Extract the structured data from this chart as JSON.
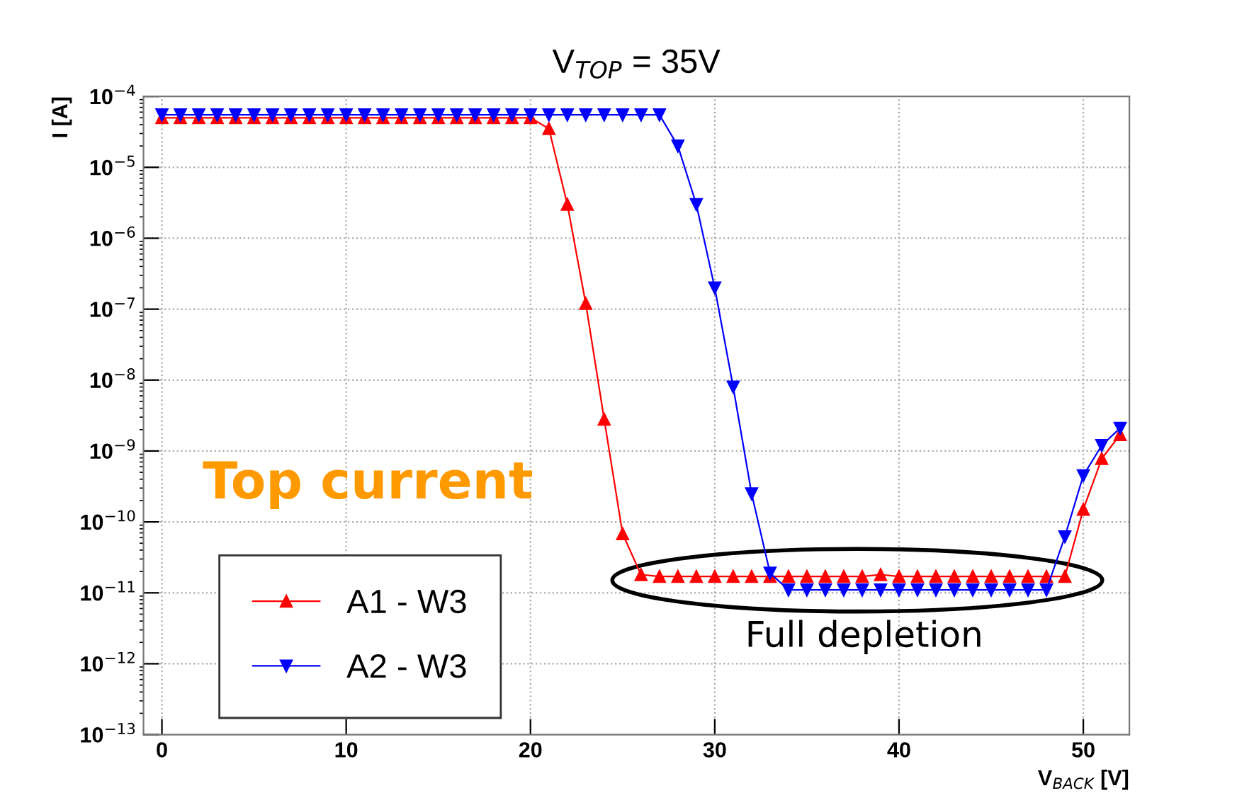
{
  "chart_data": {
    "type": "line",
    "title": "V$_{TOP}$ = 35V",
    "xlabel": "V$_{BACK}$ [V]",
    "ylabel": "I [A]",
    "x": [
      0,
      1,
      2,
      3,
      4,
      5,
      6,
      7,
      8,
      9,
      10,
      11,
      12,
      13,
      14,
      15,
      16,
      17,
      18,
      19,
      20,
      21,
      22,
      23,
      24,
      25,
      26,
      27,
      28,
      29,
      30,
      31,
      32,
      33,
      34,
      35,
      36,
      37,
      38,
      39,
      40,
      41,
      42,
      43,
      44,
      45,
      46,
      47,
      48,
      49,
      50,
      51,
      52
    ],
    "series": [
      {
        "name": "A1 - W3",
        "color": "#ff0000",
        "marker": "triangle",
        "values": [
          5e-05,
          5e-05,
          5e-05,
          5e-05,
          5e-05,
          5e-05,
          5e-05,
          5e-05,
          5e-05,
          5e-05,
          5e-05,
          5e-05,
          5e-05,
          5e-05,
          5e-05,
          5e-05,
          5e-05,
          5e-05,
          5e-05,
          5e-05,
          5e-05,
          3.5e-05,
          3e-06,
          1.2e-07,
          2.8e-09,
          6.8e-11,
          1.8e-11,
          1.7e-11,
          1.7e-11,
          1.7e-11,
          1.7e-11,
          1.7e-11,
          1.7e-11,
          1.7e-11,
          1.7e-11,
          1.7e-11,
          1.7e-11,
          1.7e-11,
          1.7e-11,
          1.8e-11,
          1.7e-11,
          1.7e-11,
          1.7e-11,
          1.7e-11,
          1.7e-11,
          1.7e-11,
          1.7e-11,
          1.7e-11,
          1.7e-11,
          1.7e-11,
          1.5e-10,
          7.8e-10,
          1.7e-09
        ]
      },
      {
        "name": "A2 - W3",
        "color": "#0000ff",
        "marker": "triangle_down",
        "values": [
          5.5e-05,
          5.5e-05,
          5.5e-05,
          5.5e-05,
          5.5e-05,
          5.5e-05,
          5.5e-05,
          5.5e-05,
          5.5e-05,
          5.5e-05,
          5.5e-05,
          5.5e-05,
          5.5e-05,
          5.5e-05,
          5.5e-05,
          5.5e-05,
          5.5e-05,
          5.5e-05,
          5.5e-05,
          5.5e-05,
          5.5e-05,
          5.5e-05,
          5.5e-05,
          5.5e-05,
          5.5e-05,
          5.5e-05,
          5.5e-05,
          5.5e-05,
          2e-05,
          3e-06,
          2e-07,
          8e-09,
          2.5e-10,
          1.9e-11,
          1.1e-11,
          1.1e-11,
          1.1e-11,
          1.1e-11,
          1.1e-11,
          1.1e-11,
          1.1e-11,
          1.1e-11,
          1.1e-11,
          1.1e-11,
          1.1e-11,
          1.1e-11,
          1.1e-11,
          1.1e-11,
          1.1e-11,
          6.2e-11,
          4.5e-10,
          1.2e-09,
          2.1e-09
        ]
      }
    ],
    "log": "y",
    "xlim": [
      -1,
      52.5
    ],
    "ylim": [
      1e-13,
      0.0001
    ],
    "xticks": [
      0,
      10,
      20,
      30,
      40,
      50
    ],
    "yticks": [
      {
        "value": 1e-13,
        "label": "10$^{−13}$"
      },
      {
        "value": 1e-12,
        "label": "10$^{−12}$"
      },
      {
        "value": 1e-11,
        "label": "10$^{−11}$"
      },
      {
        "value": 1e-10,
        "label": "10$^{−10}$"
      },
      {
        "value": 1e-09,
        "label": "10$^{−9}$"
      },
      {
        "value": 1e-08,
        "label": "10$^{−8}$"
      },
      {
        "value": 1e-07,
        "label": "10$^{−7}$"
      },
      {
        "value": 1e-06,
        "label": "10$^{−6}$"
      },
      {
        "value": 1e-05,
        "label": "10$^{−5}$"
      },
      {
        "value": 0.0001,
        "label": "10$^{−4}$"
      }
    ],
    "grid": true,
    "line_style": "solid",
    "legend": "bottom left",
    "annotations": [
      "Top current",
      "Full depletion"
    ]
  }
}
